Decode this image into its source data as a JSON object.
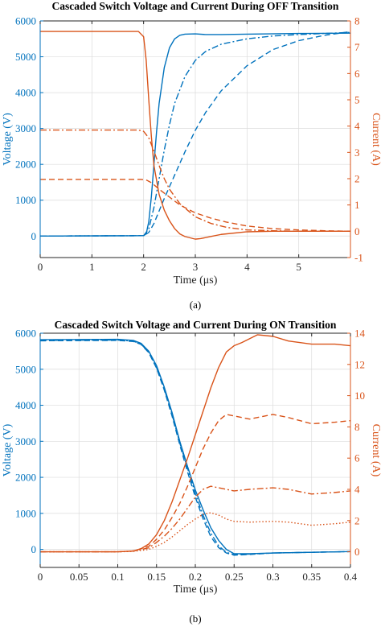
{
  "colors": {
    "voltage": "#0072BD",
    "current": "#D95319",
    "axis": "#262626",
    "grid": "#dcdcdc"
  },
  "chart_data": [
    {
      "type": "line",
      "title": "Cascaded Switch Voltage and Current During OFF Transition",
      "caption": "(a)",
      "xlabel": "Time (μs)",
      "ylabel": "Voltage (V)",
      "y2label": "Current (A)",
      "xlim": [
        0,
        6
      ],
      "ylim": [
        -600,
        6000
      ],
      "y2lim": [
        -1,
        8
      ],
      "xticks": [
        0,
        1,
        2,
        3,
        4,
        5
      ],
      "yticks": [
        0,
        1000,
        2000,
        3000,
        4000,
        5000,
        6000
      ],
      "y2ticks": [
        -1,
        0,
        1,
        2,
        3,
        4,
        5,
        6,
        7,
        8
      ],
      "grid": true,
      "series": [
        {
          "axis": "left",
          "style": "solid",
          "x": [
            0,
            2.0,
            2.05,
            2.1,
            2.15,
            2.2,
            2.25,
            2.3,
            2.4,
            2.5,
            2.6,
            2.7,
            2.8,
            3.0,
            3.2,
            3.5,
            4.0,
            5.0,
            6.0
          ],
          "y": [
            0,
            10,
            60,
            400,
            1100,
            2000,
            2900,
            3700,
            4700,
            5250,
            5500,
            5600,
            5630,
            5640,
            5620,
            5620,
            5630,
            5650,
            5660
          ]
        },
        {
          "axis": "left",
          "style": "dashdot",
          "x": [
            0,
            2.0,
            2.1,
            2.2,
            2.3,
            2.4,
            2.5,
            2.6,
            2.8,
            3.0,
            3.2,
            3.5,
            4.0,
            4.5,
            5.0,
            5.5,
            6.0
          ],
          "y": [
            0,
            10,
            200,
            800,
            1600,
            2400,
            3100,
            3700,
            4450,
            4900,
            5150,
            5350,
            5500,
            5580,
            5620,
            5650,
            5680
          ]
        },
        {
          "axis": "left",
          "style": "dashed",
          "x": [
            0,
            2.0,
            2.1,
            2.2,
            2.3,
            2.4,
            2.6,
            2.8,
            3.0,
            3.2,
            3.5,
            4.0,
            4.5,
            5.0,
            5.5,
            6.0
          ],
          "y": [
            0,
            10,
            100,
            350,
            700,
            1050,
            1700,
            2350,
            2950,
            3450,
            4050,
            4750,
            5200,
            5450,
            5600,
            5700
          ]
        },
        {
          "axis": "right",
          "style": "solid",
          "x": [
            0,
            1.9,
            2.0,
            2.05,
            2.1,
            2.15,
            2.2,
            2.3,
            2.4,
            2.5,
            2.6,
            2.7,
            2.8,
            2.9,
            3.0,
            3.1,
            3.3,
            3.5,
            4.0,
            4.5,
            5.0,
            6.0
          ],
          "y": [
            7.6,
            7.6,
            7.4,
            6.5,
            5.0,
            3.6,
            2.5,
            1.4,
            0.8,
            0.4,
            0.1,
            -0.1,
            -0.2,
            -0.25,
            -0.3,
            -0.28,
            -0.2,
            -0.12,
            -0.02,
            0.0,
            0.0,
            0.0
          ]
        },
        {
          "axis": "right",
          "style": "dashdot",
          "x": [
            0,
            1.9,
            2.0,
            2.1,
            2.2,
            2.3,
            2.4,
            2.5,
            2.7,
            3.0,
            3.3,
            3.6,
            4.0,
            4.5,
            5.0,
            6.0
          ],
          "y": [
            3.85,
            3.85,
            3.8,
            3.55,
            3.05,
            2.5,
            2.0,
            1.6,
            1.05,
            0.55,
            0.3,
            0.15,
            0.05,
            0.02,
            0.0,
            0.0
          ]
        },
        {
          "axis": "right",
          "style": "dashed",
          "x": [
            0,
            1.95,
            2.05,
            2.15,
            2.3,
            2.5,
            2.7,
            3.0,
            3.3,
            3.6,
            4.0,
            4.5,
            5.0,
            5.5,
            6.0
          ],
          "y": [
            1.97,
            1.97,
            1.95,
            1.85,
            1.6,
            1.3,
            1.0,
            0.7,
            0.5,
            0.35,
            0.2,
            0.1,
            0.05,
            0.02,
            0.0
          ]
        }
      ]
    },
    {
      "type": "line",
      "title": "Cascaded Switch Voltage and Current During ON Transition",
      "caption": "(b)",
      "xlabel": "Time (μs)",
      "ylabel": "Voltage (V)",
      "y2label": "Current (A)",
      "xlim": [
        0,
        0.4
      ],
      "ylim": [
        -500,
        6000
      ],
      "y2lim": [
        -1,
        14
      ],
      "xticks": [
        0,
        0.05,
        0.1,
        0.15,
        0.2,
        0.25,
        0.3,
        0.35,
        0.4
      ],
      "yticks": [
        0,
        1000,
        2000,
        3000,
        4000,
        5000,
        6000
      ],
      "y2ticks": [
        0,
        2,
        4,
        6,
        8,
        10,
        12,
        14
      ],
      "grid": true,
      "series": [
        {
          "axis": "left",
          "style": "solid",
          "x": [
            0,
            0.1,
            0.12,
            0.13,
            0.14,
            0.15,
            0.16,
            0.17,
            0.18,
            0.19,
            0.2,
            0.21,
            0.22,
            0.23,
            0.24,
            0.25,
            0.27,
            0.3,
            0.35,
            0.4
          ],
          "y": [
            5820,
            5830,
            5800,
            5720,
            5500,
            5100,
            4500,
            3800,
            3000,
            2300,
            1650,
            1100,
            600,
            250,
            0,
            -120,
            -120,
            -100,
            -80,
            -60
          ]
        },
        {
          "axis": "left",
          "style": "dashdot",
          "x": [
            0,
            0.1,
            0.12,
            0.13,
            0.14,
            0.15,
            0.16,
            0.17,
            0.18,
            0.19,
            0.2,
            0.21,
            0.22,
            0.23,
            0.24,
            0.25,
            0.27,
            0.3,
            0.35,
            0.4
          ],
          "y": [
            5800,
            5810,
            5780,
            5700,
            5470,
            5050,
            4450,
            3750,
            2950,
            2250,
            1550,
            950,
            450,
            100,
            -80,
            -150,
            -130,
            -100,
            -80,
            -60
          ]
        },
        {
          "axis": "left",
          "style": "dashed",
          "x": [
            0,
            0.1,
            0.12,
            0.13,
            0.14,
            0.15,
            0.16,
            0.17,
            0.18,
            0.19,
            0.2,
            0.21,
            0.22,
            0.23,
            0.24,
            0.25,
            0.27,
            0.3,
            0.35,
            0.4
          ],
          "y": [
            5790,
            5800,
            5770,
            5690,
            5460,
            5030,
            4420,
            3700,
            2900,
            2150,
            1450,
            850,
            350,
            50,
            -100,
            -160,
            -140,
            -100,
            -80,
            -60
          ]
        },
        {
          "axis": "right",
          "style": "solid",
          "x": [
            0,
            0.1,
            0.12,
            0.13,
            0.14,
            0.15,
            0.16,
            0.17,
            0.18,
            0.19,
            0.2,
            0.21,
            0.22,
            0.23,
            0.24,
            0.25,
            0.26,
            0.28,
            0.3,
            0.32,
            0.35,
            0.38,
            0.4
          ],
          "y": [
            0,
            0,
            0.05,
            0.2,
            0.5,
            1.1,
            2.0,
            3.2,
            4.6,
            6.0,
            7.5,
            9.0,
            10.5,
            11.8,
            12.8,
            13.2,
            13.4,
            13.9,
            13.8,
            13.5,
            13.3,
            13.3,
            13.2
          ]
        },
        {
          "axis": "right",
          "style": "dashed",
          "x": [
            0,
            0.1,
            0.12,
            0.14,
            0.15,
            0.16,
            0.17,
            0.18,
            0.19,
            0.2,
            0.21,
            0.22,
            0.23,
            0.24,
            0.25,
            0.27,
            0.3,
            0.32,
            0.35,
            0.38,
            0.4
          ],
          "y": [
            0,
            0,
            0.05,
            0.35,
            0.8,
            1.4,
            2.2,
            3.1,
            4.2,
            5.4,
            6.6,
            7.6,
            8.4,
            8.8,
            8.7,
            8.5,
            8.8,
            8.6,
            8.2,
            8.3,
            8.4
          ]
        },
        {
          "axis": "right",
          "style": "dashdot",
          "x": [
            0,
            0.1,
            0.12,
            0.14,
            0.15,
            0.16,
            0.17,
            0.18,
            0.19,
            0.2,
            0.21,
            0.22,
            0.23,
            0.25,
            0.27,
            0.3,
            0.32,
            0.35,
            0.38,
            0.4
          ],
          "y": [
            0,
            0,
            0.05,
            0.25,
            0.6,
            1.0,
            1.5,
            2.1,
            2.8,
            3.5,
            4.0,
            4.2,
            4.1,
            3.9,
            4.0,
            4.1,
            4.0,
            3.7,
            3.8,
            3.9
          ]
        },
        {
          "axis": "right",
          "style": "dotted",
          "x": [
            0,
            0.1,
            0.12,
            0.14,
            0.15,
            0.16,
            0.17,
            0.18,
            0.19,
            0.2,
            0.21,
            0.22,
            0.23,
            0.24,
            0.25,
            0.27,
            0.3,
            0.32,
            0.35,
            0.38,
            0.4
          ],
          "y": [
            0,
            0,
            0.03,
            0.15,
            0.35,
            0.6,
            0.95,
            1.35,
            1.75,
            2.1,
            2.4,
            2.5,
            2.35,
            2.1,
            1.95,
            1.9,
            1.95,
            1.9,
            1.7,
            1.8,
            1.9
          ]
        }
      ]
    }
  ]
}
